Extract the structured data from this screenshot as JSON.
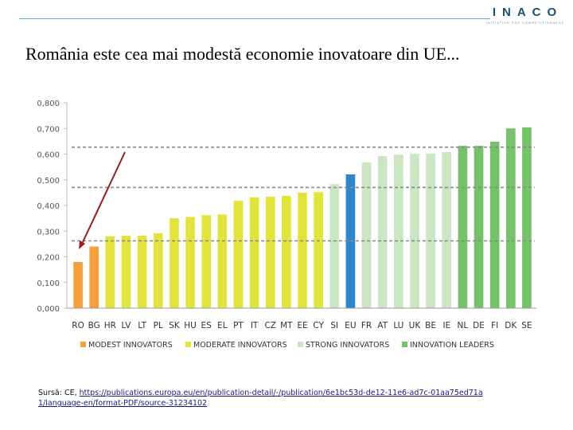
{
  "header": {
    "logo_text": "INACO",
    "logo_subtitle": "INITIATIVE FOR COMPETITIVENESS"
  },
  "slide_title": "România este cea mai modestă economie inovatoare din UE...",
  "source": {
    "prefix": "Sursă: CE, ",
    "url": "https://publications.europa.eu/en/publication-detail/-/publication/6e1bc53d-de12-11e6-ad7c-01aa75ed71a1/language-en/format-PDF/source-31234102"
  },
  "colors": {
    "modest": "#f5a03c",
    "moderate": "#e3e43b",
    "strong": "#cbe6c3",
    "leaders": "#75c26a",
    "eu": "#2f86cc",
    "arrow": "#9e1b1b",
    "dashed": "#8a8a8a"
  },
  "chart_data": {
    "type": "bar",
    "title": "",
    "xlabel": "",
    "ylabel": "",
    "ylim": [
      0,
      0.8
    ],
    "yticks": [
      "0,000",
      "0,100",
      "0,200",
      "0,300",
      "0,400",
      "0,500",
      "0,600",
      "0,700",
      "0,800"
    ],
    "categories": [
      "RO",
      "BG",
      "HR",
      "LV",
      "LT",
      "PL",
      "SK",
      "HU",
      "ES",
      "EL",
      "PT",
      "IT",
      "CZ",
      "MT",
      "EE",
      "CY",
      "SI",
      "EU",
      "FR",
      "AT",
      "LU",
      "UK",
      "BE",
      "IE",
      "NL",
      "DE",
      "FI",
      "DK",
      "SE"
    ],
    "values": [
      0.18,
      0.24,
      0.28,
      0.282,
      0.282,
      0.292,
      0.35,
      0.355,
      0.362,
      0.365,
      0.418,
      0.432,
      0.434,
      0.437,
      0.45,
      0.452,
      0.483,
      0.521,
      0.568,
      0.592,
      0.598,
      0.601,
      0.602,
      0.608,
      0.632,
      0.632,
      0.648,
      0.7,
      0.704
    ],
    "groups": [
      "modest",
      "modest",
      "moderate",
      "moderate",
      "moderate",
      "moderate",
      "moderate",
      "moderate",
      "moderate",
      "moderate",
      "moderate",
      "moderate",
      "moderate",
      "moderate",
      "moderate",
      "moderate",
      "strong",
      "eu",
      "strong",
      "strong",
      "strong",
      "strong",
      "strong",
      "strong",
      "leaders",
      "leaders",
      "leaders",
      "leaders",
      "leaders"
    ],
    "thresholds": [
      0.262,
      0.47,
      0.627
    ],
    "legend": [
      {
        "key": "modest",
        "label": "MODEST INNOVATORS"
      },
      {
        "key": "moderate",
        "label": "MODERATE INNOVATORS"
      },
      {
        "key": "strong",
        "label": "STRONG INNOVATORS"
      },
      {
        "key": "leaders",
        "label": "INNOVATION LEADERS"
      }
    ],
    "legend_position": "bottom",
    "annotation": "arrow pointing to RO"
  }
}
